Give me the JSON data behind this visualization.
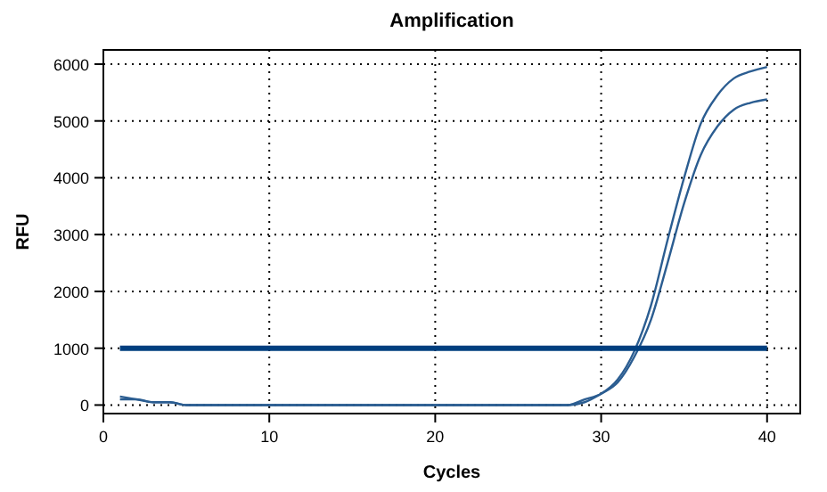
{
  "chart_data": {
    "type": "line",
    "title": "Amplification",
    "xlabel": "Cycles",
    "ylabel": "RFU",
    "xlim": [
      0,
      42
    ],
    "xticks": [
      0,
      10,
      20,
      30,
      40
    ],
    "ylim": [
      -150,
      6250
    ],
    "yticks": [
      0,
      1000,
      2000,
      3000,
      4000,
      5000,
      6000
    ],
    "grid": true,
    "marker": "none",
    "line_style": "solid",
    "series": [
      {
        "color": "#2b5d91",
        "x": [
          1,
          2,
          3,
          4,
          5,
          6,
          7,
          8,
          9,
          10,
          11,
          12,
          13,
          14,
          15,
          16,
          17,
          18,
          19,
          20,
          21,
          22,
          23,
          24,
          25,
          26,
          27,
          28,
          29,
          30,
          31,
          32,
          33,
          34,
          35,
          36,
          37,
          38,
          39,
          40
        ],
        "values": [
          150,
          100,
          50,
          50,
          0,
          0,
          0,
          0,
          0,
          0,
          0,
          0,
          0,
          0,
          0,
          0,
          0,
          0,
          0,
          0,
          0,
          0,
          0,
          0,
          0,
          0,
          0,
          0,
          100,
          200,
          450,
          950,
          1750,
          2900,
          4000,
          4950,
          5450,
          5750,
          5870,
          5950
        ]
      },
      {
        "color": "#2b5d91",
        "x": [
          1,
          2,
          3,
          4,
          5,
          6,
          7,
          8,
          9,
          10,
          11,
          12,
          13,
          14,
          15,
          16,
          17,
          18,
          19,
          20,
          21,
          22,
          23,
          24,
          25,
          26,
          27,
          28,
          29,
          30,
          31,
          32,
          33,
          34,
          35,
          36,
          37,
          38,
          39,
          40
        ],
        "values": [
          100,
          100,
          50,
          50,
          0,
          0,
          0,
          0,
          0,
          0,
          0,
          0,
          0,
          0,
          0,
          0,
          0,
          0,
          0,
          0,
          0,
          0,
          0,
          0,
          0,
          0,
          0,
          0,
          50,
          200,
          400,
          850,
          1500,
          2500,
          3550,
          4400,
          4900,
          5200,
          5320,
          5380
        ]
      },
      {
        "color": "#003f7f",
        "x": [
          1,
          40
        ],
        "values": [
          1000,
          1000
        ]
      }
    ]
  }
}
